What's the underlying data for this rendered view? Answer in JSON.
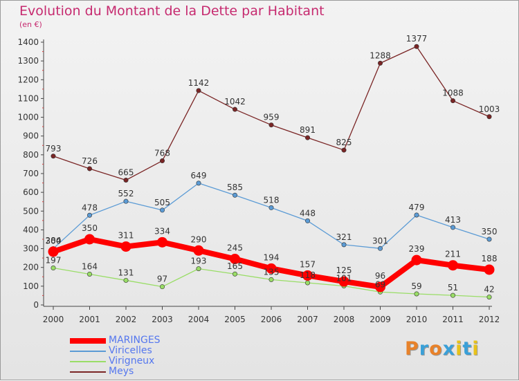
{
  "header": {
    "title": "Evolution du Montant de la Dette par Habitant",
    "subtitle": "(en €)"
  },
  "logo": {
    "text": "Proxiti",
    "letters": [
      {
        "ch": "P",
        "color": "#e8822a"
      },
      {
        "ch": "r",
        "color": "#3aa0d8"
      },
      {
        "ch": "o",
        "color": "#e8822a"
      },
      {
        "ch": "x",
        "color": "#3aa0d8"
      },
      {
        "ch": "i",
        "color": "#e8c21a"
      },
      {
        "ch": "t",
        "color": "#3aa0d8"
      },
      {
        "ch": "i",
        "color": "#e8c21a"
      }
    ]
  },
  "chart_data": {
    "type": "line",
    "title": "Evolution du Montant de la Dette par Habitant",
    "subtitle": "(en €)",
    "x": [
      "2000",
      "2001",
      "2002",
      "2003",
      "2004",
      "2005",
      "2006",
      "2007",
      "2008",
      "2009",
      "2010",
      "2011",
      "2012"
    ],
    "ylim": [
      0,
      1400
    ],
    "yticks": [
      0,
      100,
      200,
      300,
      400,
      500,
      600,
      700,
      800,
      900,
      1000,
      1100,
      1200,
      1300,
      1400
    ],
    "grid": false,
    "legend_position": "bottom-left",
    "series": [
      {
        "name": "MARINGES",
        "color": "#ff0000",
        "values": [
          284,
          350,
          311,
          334,
          290,
          245,
          194,
          157,
          125,
          96,
          239,
          211,
          188
        ]
      },
      {
        "name": "Viricelles",
        "color": "#5b9bd5",
        "values": [
          300,
          478,
          552,
          505,
          649,
          585,
          518,
          448,
          321,
          301,
          479,
          413,
          350
        ]
      },
      {
        "name": "Virigneux",
        "color": "#99dd66",
        "values": [
          197,
          164,
          131,
          97,
          193,
          165,
          135,
          118,
          101,
          69,
          59,
          51,
          42
        ]
      },
      {
        "name": "Meys",
        "color": "#7a2525",
        "values": [
          793,
          726,
          665,
          768,
          1142,
          1042,
          959,
          891,
          825,
          1288,
          1377,
          1088,
          1003
        ]
      }
    ],
    "legend_label_colors": [
      "#5577ee",
      "#5577ee",
      "#5577ee",
      "#5577ee"
    ]
  }
}
